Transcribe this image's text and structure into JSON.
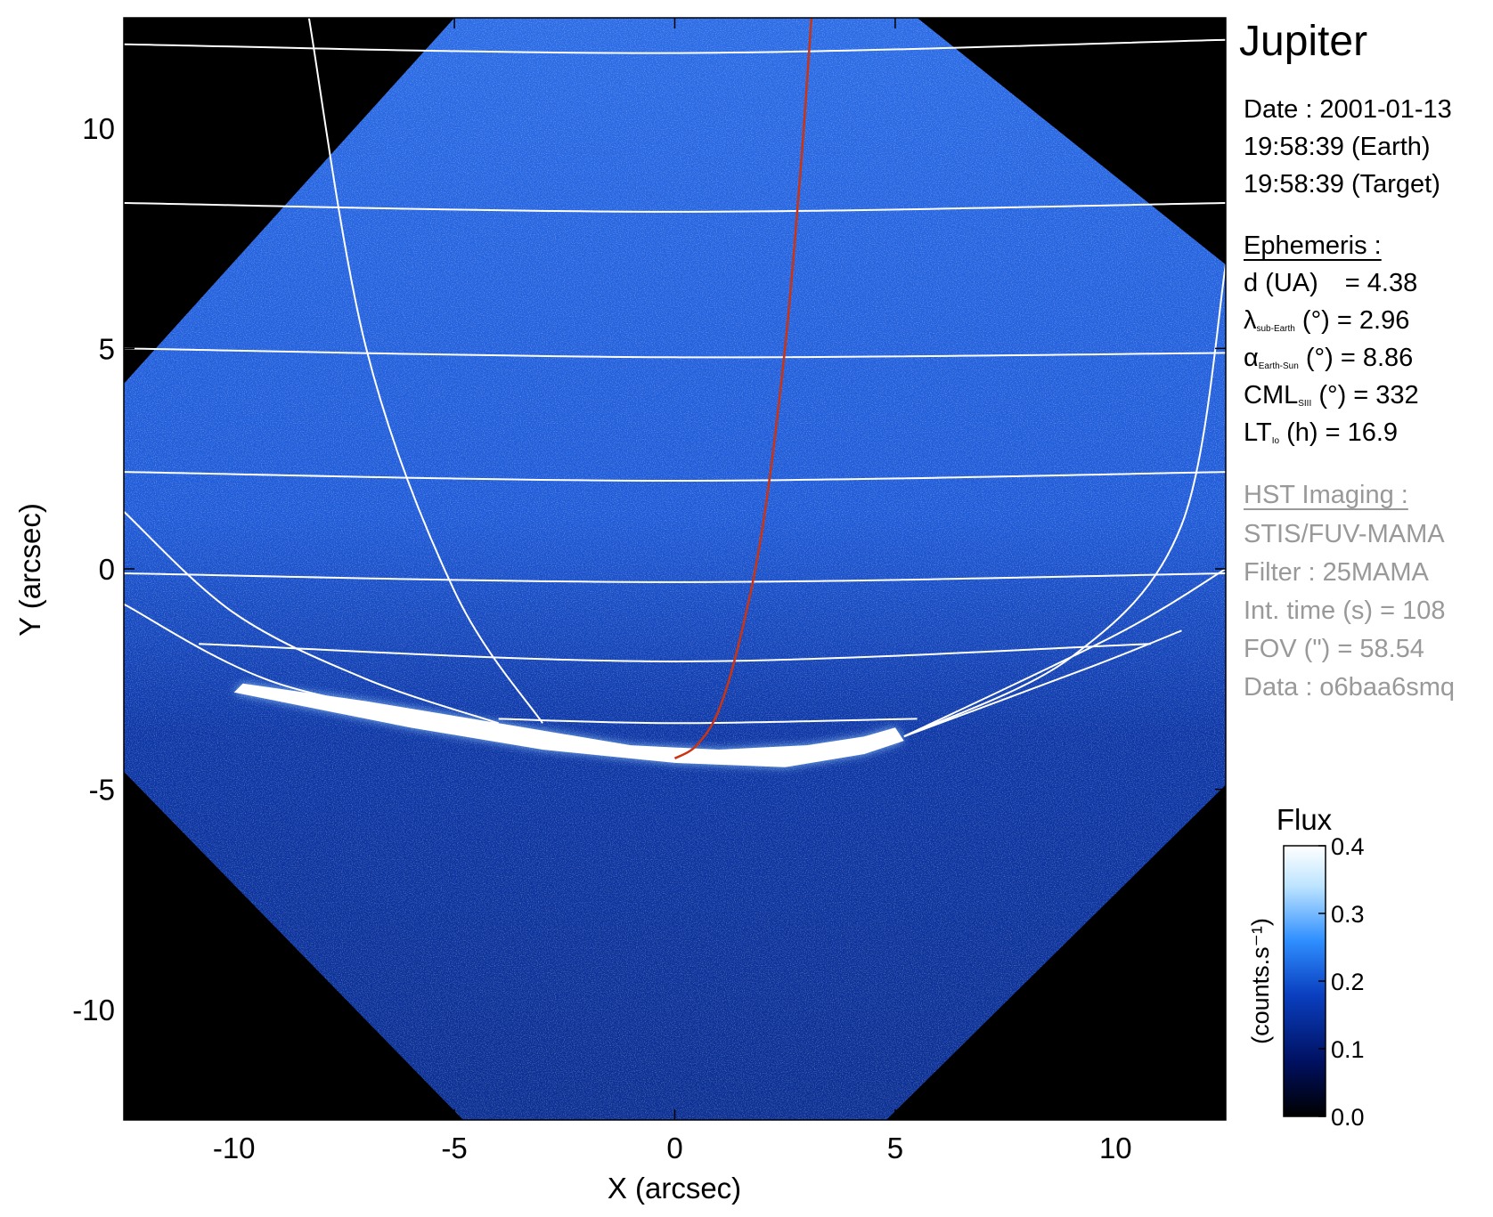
{
  "chart_data": {
    "type": "heatmap",
    "planet_title": "Jupiter",
    "xlabel": "X (arcsec)",
    "ylabel": "Y (arcsec)",
    "xlim": [
      -12.5,
      12.5
    ],
    "ylim": [
      -12.5,
      12.5
    ],
    "x_ticks": [
      -10,
      -5,
      0,
      5,
      10
    ],
    "y_ticks": [
      -10,
      -5,
      0,
      5,
      10
    ],
    "x_tick_labels": [
      "-10",
      "-5",
      "0",
      "5",
      "10"
    ],
    "y_tick_labels": [
      "-10",
      "-5",
      "0",
      "5",
      "10"
    ],
    "colorbar": {
      "title": "Flux",
      "unit_label": "(counts.s⁻¹)",
      "ticks": [
        0.0,
        0.1,
        0.2,
        0.3,
        0.4
      ],
      "tick_labels": [
        "0.0",
        "0.1",
        "0.2",
        "0.3",
        "0.4"
      ],
      "range": [
        0.0,
        0.4
      ],
      "colors": [
        "#000000",
        "#001060",
        "#0a3fc0",
        "#2f8fff",
        "#bde4ff",
        "#ffffff"
      ]
    },
    "colors": {
      "background": "#000000",
      "image_field": "#1a55d8",
      "grid_lines": "#ffffff",
      "io_footprint_line": "#cc3311",
      "aurora": "#ffffff"
    },
    "image_field_polygon_arcsec": [
      [
        -5.0,
        12.5
      ],
      [
        5.5,
        12.5
      ],
      [
        12.5,
        6.9
      ],
      [
        12.5,
        -4.9
      ],
      [
        4.8,
        -12.5
      ],
      [
        -4.8,
        -12.5
      ],
      [
        -12.5,
        -4.6
      ],
      [
        -12.5,
        4.2
      ]
    ],
    "latitude_lines_arcsec": [
      [
        [
          -12.5,
          11.9
        ],
        [
          0,
          11.7
        ],
        [
          12.5,
          12.0
        ]
      ],
      [
        [
          -12.5,
          8.3
        ],
        [
          0,
          8.1
        ],
        [
          12.5,
          8.3
        ]
      ],
      [
        [
          -12.5,
          5.0
        ],
        [
          0,
          4.8
        ],
        [
          12.5,
          4.9
        ]
      ],
      [
        [
          -12.5,
          2.2
        ],
        [
          0,
          2.0
        ],
        [
          12.5,
          2.2
        ]
      ],
      [
        [
          -12.5,
          -0.1
        ],
        [
          0,
          -0.3
        ],
        [
          12.5,
          -0.1
        ]
      ],
      [
        [
          -10.8,
          -1.7
        ],
        [
          0,
          -2.1
        ],
        [
          10.8,
          -1.7
        ]
      ],
      [
        [
          -4.0,
          -3.4
        ],
        [
          0,
          -3.5
        ],
        [
          5.5,
          -3.4
        ]
      ]
    ],
    "longitude_lines_arcsec": [
      [
        [
          -8.3,
          12.5
        ],
        [
          -7.0,
          5.0
        ],
        [
          -5.0,
          -0.5
        ],
        [
          -3.0,
          -3.5
        ]
      ],
      [
        [
          -12.5,
          1.3
        ],
        [
          -10.0,
          -1.0
        ],
        [
          -7.0,
          -2.5
        ],
        [
          -4.0,
          -3.5
        ]
      ],
      [
        [
          -12.5,
          -0.8
        ],
        [
          -9.0,
          -2.6
        ],
        [
          -4.0,
          -3.6
        ]
      ],
      [
        [
          5.2,
          -3.8
        ],
        [
          9.0,
          -2.0
        ],
        [
          11.5,
          1.0
        ],
        [
          12.5,
          6.9
        ]
      ],
      [
        [
          5.2,
          -3.8
        ],
        [
          10.0,
          -1.5
        ],
        [
          12.5,
          0.0
        ]
      ],
      [
        [
          5.2,
          -3.8
        ],
        [
          9.5,
          -2.2
        ],
        [
          11.5,
          -1.4
        ]
      ]
    ],
    "io_footprint_arcsec": [
      [
        0.0,
        -4.3
      ],
      [
        0.5,
        -4.0
      ],
      [
        1.0,
        -3.2
      ],
      [
        1.5,
        -1.5
      ],
      [
        2.0,
        1.0
      ],
      [
        2.5,
        5.0
      ],
      [
        2.85,
        9.0
      ],
      [
        3.1,
        12.5
      ]
    ],
    "aurora_oval_arcsec": [
      [
        -9.8,
        -2.6
      ],
      [
        -7.0,
        -3.0
      ],
      [
        -4.0,
        -3.5
      ],
      [
        -1.0,
        -4.0
      ],
      [
        1.0,
        -4.1
      ],
      [
        3.0,
        -4.0
      ],
      [
        4.3,
        -3.8
      ],
      [
        5.0,
        -3.6
      ],
      [
        5.2,
        -3.9
      ],
      [
        4.3,
        -4.2
      ],
      [
        2.5,
        -4.5
      ],
      [
        0.0,
        -4.4
      ],
      [
        -3.0,
        -4.1
      ],
      [
        -6.0,
        -3.6
      ],
      [
        -9.0,
        -3.0
      ],
      [
        -10.0,
        -2.8
      ]
    ]
  },
  "info_panel": {
    "date_label": "Date : 2001-01-13",
    "time_earth": "19:58:39 (Earth)",
    "time_target": "19:58:39 (Target)",
    "ephemeris_title": "Ephemeris :",
    "distance": {
      "label": "d (UA)",
      "value": "= 4.38"
    },
    "lambda": {
      "symbol": "λ",
      "sub": "sub-Earth",
      "unit": "(°)",
      "value": "= 2.96"
    },
    "alpha": {
      "symbol": "α",
      "sub": "Earth-Sun",
      "unit": "(°)",
      "value": "= 8.86"
    },
    "cml": {
      "symbol": "CML",
      "sub": "SIII",
      "unit": "(°)",
      "value": "= 332"
    },
    "lt": {
      "symbol": "LT",
      "sub": "Io",
      "unit": "(h)",
      "value": "= 16.9"
    },
    "hst_title": "HST Imaging :",
    "instrument": "STIS/FUV-MAMA",
    "filter": "Filter : 25MAMA",
    "int_time": "Int. time (s) = 108",
    "fov": "FOV (\") = 58.54",
    "dataset": "Data : o6baa6smq"
  }
}
